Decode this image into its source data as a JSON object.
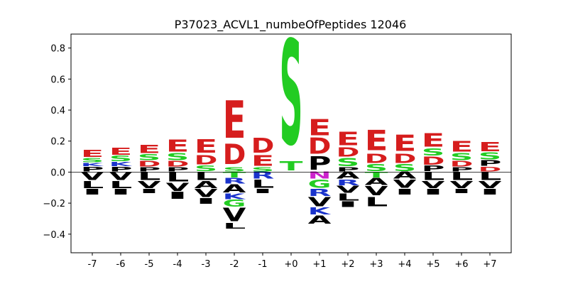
{
  "chart_data": {
    "type": "sequence-logo",
    "title": "P37023_ACVL1_numbeOfPeptides 12046",
    "xlabel": "",
    "ylabel": "",
    "ylim": [
      -0.52,
      0.89
    ],
    "yticks": [
      "−0.4",
      "−0.2",
      "0.0",
      "0.2",
      "0.4",
      "0.6",
      "0.8"
    ],
    "ytick_values": [
      -0.4,
      -0.2,
      0.0,
      0.2,
      0.4,
      0.6,
      0.8
    ],
    "positions": [
      "-7",
      "-6",
      "-5",
      "-4",
      "-3",
      "-2",
      "-1",
      "+0",
      "+1",
      "+2",
      "+3",
      "+4",
      "+5",
      "+6",
      "+7"
    ],
    "colors": {
      "acidic": "#d61d1d",
      "polar": "#22cc22",
      "basic": "#1a33cc",
      "hydrophobic": "#000000",
      "amide": "#cc22cc"
    },
    "columns": [
      {
        "pos": "-7",
        "above": [
          [
            "P",
            0.035,
            "hydrophobic"
          ],
          [
            "K",
            0.025,
            "basic"
          ],
          [
            "S",
            0.03,
            "polar"
          ],
          [
            "E",
            0.05,
            "acidic"
          ]
        ],
        "below": [
          [
            "V",
            0.06,
            "hydrophobic"
          ],
          [
            "L",
            0.05,
            "hydrophobic"
          ],
          [
            "I",
            0.04,
            "hydrophobic"
          ]
        ]
      },
      {
        "pos": "-6",
        "above": [
          [
            "P",
            0.035,
            "hydrophobic"
          ],
          [
            "K",
            0.03,
            "basic"
          ],
          [
            "S",
            0.04,
            "polar"
          ],
          [
            "E",
            0.05,
            "acidic"
          ]
        ],
        "below": [
          [
            "V",
            0.06,
            "hydrophobic"
          ],
          [
            "L",
            0.05,
            "hydrophobic"
          ],
          [
            "I",
            0.04,
            "hydrophobic"
          ]
        ]
      },
      {
        "pos": "-5",
        "above": [
          [
            "P",
            0.03,
            "hydrophobic"
          ],
          [
            "D",
            0.04,
            "acidic"
          ],
          [
            "S",
            0.045,
            "polar"
          ],
          [
            "E",
            0.06,
            "acidic"
          ]
        ],
        "below": [
          [
            "L",
            0.06,
            "hydrophobic"
          ],
          [
            "V",
            0.05,
            "hydrophobic"
          ],
          [
            "I",
            0.03,
            "hydrophobic"
          ]
        ]
      },
      {
        "pos": "-4",
        "above": [
          [
            "P",
            0.03,
            "hydrophobic"
          ],
          [
            "D",
            0.04,
            "acidic"
          ],
          [
            "S",
            0.05,
            "polar"
          ],
          [
            "E",
            0.09,
            "acidic"
          ]
        ],
        "below": [
          [
            "L",
            0.07,
            "hydrophobic"
          ],
          [
            "V",
            0.06,
            "hydrophobic"
          ],
          [
            "I",
            0.05,
            "hydrophobic"
          ]
        ]
      },
      {
        "pos": "-3",
        "above": [
          [
            "S",
            0.04,
            "polar"
          ],
          [
            "D",
            0.07,
            "acidic"
          ],
          [
            "E",
            0.1,
            "acidic"
          ]
        ],
        "below": [
          [
            "L",
            0.06,
            "hydrophobic"
          ],
          [
            "A",
            0.05,
            "hydrophobic"
          ],
          [
            "V",
            0.06,
            "hydrophobic"
          ],
          [
            "I",
            0.04,
            "hydrophobic"
          ]
        ]
      },
      {
        "pos": "-2",
        "above": [
          [
            "S",
            0.03,
            "polar"
          ],
          [
            "D",
            0.15,
            "acidic"
          ],
          [
            "E",
            0.28,
            "acidic"
          ]
        ],
        "below": [
          [
            "T",
            0.04,
            "polar"
          ],
          [
            "R",
            0.04,
            "basic"
          ],
          [
            "A",
            0.06,
            "hydrophobic"
          ],
          [
            "K",
            0.04,
            "basic"
          ],
          [
            "G",
            0.05,
            "polar"
          ],
          [
            "V",
            0.1,
            "hydrophobic"
          ],
          [
            "L",
            0.04,
            "hydrophobic"
          ]
        ]
      },
      {
        "pos": "-1",
        "above": [
          [
            "S",
            0.03,
            "polar"
          ],
          [
            "E",
            0.08,
            "acidic"
          ],
          [
            "D",
            0.11,
            "acidic"
          ]
        ],
        "below": [
          [
            "R",
            0.05,
            "basic"
          ],
          [
            "L",
            0.06,
            "hydrophobic"
          ],
          [
            "I",
            0.03,
            "hydrophobic"
          ]
        ]
      },
      {
        "pos": "+0",
        "above": [
          [
            "T",
            0.07,
            "polar"
          ],
          [
            "S",
            0.78,
            "polar"
          ]
        ],
        "below": []
      },
      {
        "pos": "+1",
        "above": [
          [
            "P",
            0.1,
            "hydrophobic"
          ],
          [
            "D",
            0.12,
            "acidic"
          ],
          [
            "E",
            0.12,
            "acidic"
          ]
        ],
        "below": [
          [
            "N",
            0.05,
            "amide"
          ],
          [
            "G",
            0.06,
            "polar"
          ],
          [
            "R",
            0.05,
            "basic"
          ],
          [
            "V",
            0.07,
            "hydrophobic"
          ],
          [
            "K",
            0.05,
            "basic"
          ],
          [
            "A",
            0.06,
            "hydrophobic"
          ]
        ]
      },
      {
        "pos": "+2",
        "above": [
          [
            "P",
            0.03,
            "hydrophobic"
          ],
          [
            "S",
            0.06,
            "polar"
          ],
          [
            "D",
            0.07,
            "acidic"
          ],
          [
            "E",
            0.1,
            "acidic"
          ]
        ],
        "below": [
          [
            "A",
            0.05,
            "hydrophobic"
          ],
          [
            "R",
            0.04,
            "basic"
          ],
          [
            "V",
            0.05,
            "hydrophobic"
          ],
          [
            "L",
            0.05,
            "hydrophobic"
          ],
          [
            "I",
            0.04,
            "hydrophobic"
          ]
        ]
      },
      {
        "pos": "+3",
        "above": [
          [
            "S",
            0.05,
            "polar"
          ],
          [
            "D",
            0.07,
            "acidic"
          ],
          [
            "E",
            0.15,
            "acidic"
          ]
        ],
        "below": [
          [
            "T",
            0.04,
            "polar"
          ],
          [
            "A",
            0.05,
            "hydrophobic"
          ],
          [
            "V",
            0.07,
            "hydrophobic"
          ],
          [
            "L",
            0.07,
            "hydrophobic"
          ]
        ]
      },
      {
        "pos": "+4",
        "above": [
          [
            "S",
            0.05,
            "polar"
          ],
          [
            "D",
            0.07,
            "acidic"
          ],
          [
            "E",
            0.12,
            "acidic"
          ]
        ],
        "below": [
          [
            "A",
            0.05,
            "hydrophobic"
          ],
          [
            "V",
            0.06,
            "hydrophobic"
          ],
          [
            "I",
            0.04,
            "hydrophobic"
          ]
        ]
      },
      {
        "pos": "+5",
        "above": [
          [
            "P",
            0.04,
            "hydrophobic"
          ],
          [
            "D",
            0.06,
            "acidic"
          ],
          [
            "S",
            0.05,
            "polar"
          ],
          [
            "E",
            0.1,
            "acidic"
          ]
        ],
        "below": [
          [
            "L",
            0.06,
            "hydrophobic"
          ],
          [
            "V",
            0.05,
            "hydrophobic"
          ],
          [
            "I",
            0.04,
            "hydrophobic"
          ]
        ]
      },
      {
        "pos": "+6",
        "above": [
          [
            "P",
            0.03,
            "hydrophobic"
          ],
          [
            "D",
            0.04,
            "acidic"
          ],
          [
            "S",
            0.05,
            "polar"
          ],
          [
            "E",
            0.08,
            "acidic"
          ]
        ],
        "below": [
          [
            "L",
            0.06,
            "hydrophobic"
          ],
          [
            "V",
            0.05,
            "hydrophobic"
          ],
          [
            "I",
            0.03,
            "hydrophobic"
          ]
        ]
      },
      {
        "pos": "+7",
        "above": [
          [
            "D",
            0.035,
            "acidic"
          ],
          [
            "P",
            0.04,
            "hydrophobic"
          ],
          [
            "S",
            0.05,
            "polar"
          ],
          [
            "E",
            0.07,
            "acidic"
          ]
        ],
        "below": [
          [
            "L",
            0.06,
            "hydrophobic"
          ],
          [
            "V",
            0.05,
            "hydrophobic"
          ],
          [
            "I",
            0.04,
            "hydrophobic"
          ]
        ]
      }
    ]
  }
}
